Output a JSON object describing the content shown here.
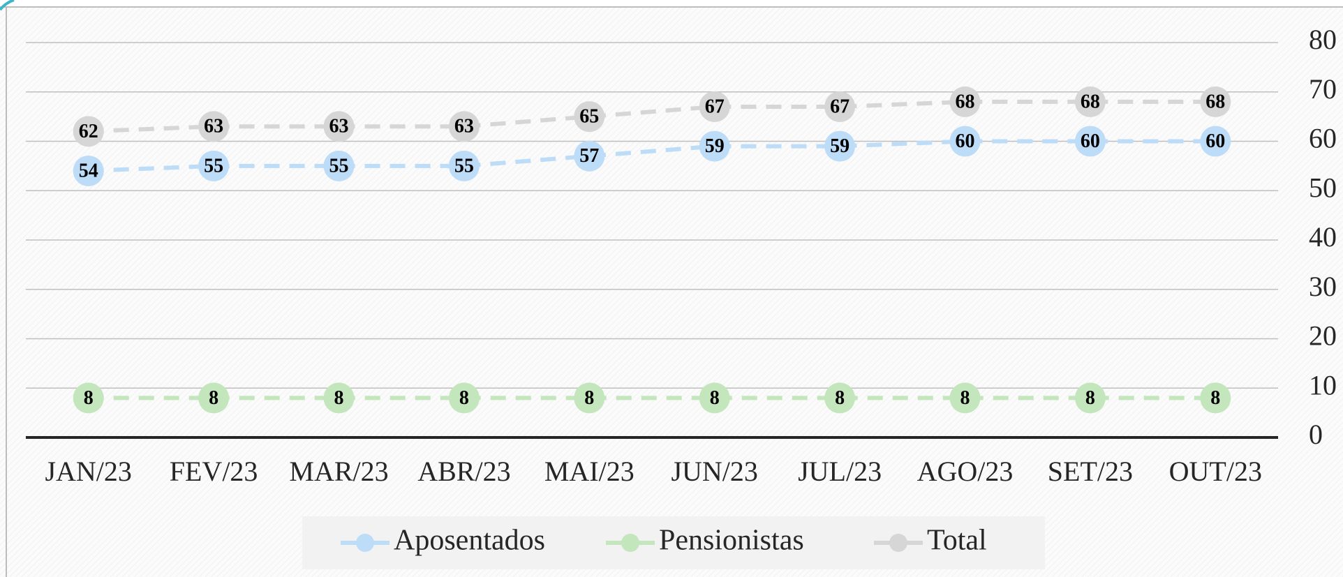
{
  "chart_data": {
    "type": "line",
    "categories": [
      "JAN/23",
      "FEV/23",
      "MAR/23",
      "ABR/23",
      "MAI/23",
      "JUN/23",
      "JUL/23",
      "AGO/23",
      "SET/23",
      "OUT/23"
    ],
    "series": [
      {
        "name": "Aposentados",
        "color": "#bddcf7",
        "values": [
          54,
          55,
          55,
          55,
          57,
          59,
          59,
          60,
          60,
          60
        ]
      },
      {
        "name": "Pensionistas",
        "color": "#c4e6bc",
        "values": [
          8,
          8,
          8,
          8,
          8,
          8,
          8,
          8,
          8,
          8
        ]
      },
      {
        "name": "Total",
        "color": "#d6d6d6",
        "values": [
          62,
          63,
          63,
          63,
          65,
          67,
          67,
          68,
          68,
          68
        ]
      }
    ],
    "ylim": [
      0,
      80
    ],
    "yticks": [
      0,
      10,
      20,
      30,
      40,
      50,
      60,
      70,
      80
    ],
    "y_axis_side": "right",
    "grid": true,
    "legend": "bottom",
    "line_style": "dashed"
  }
}
